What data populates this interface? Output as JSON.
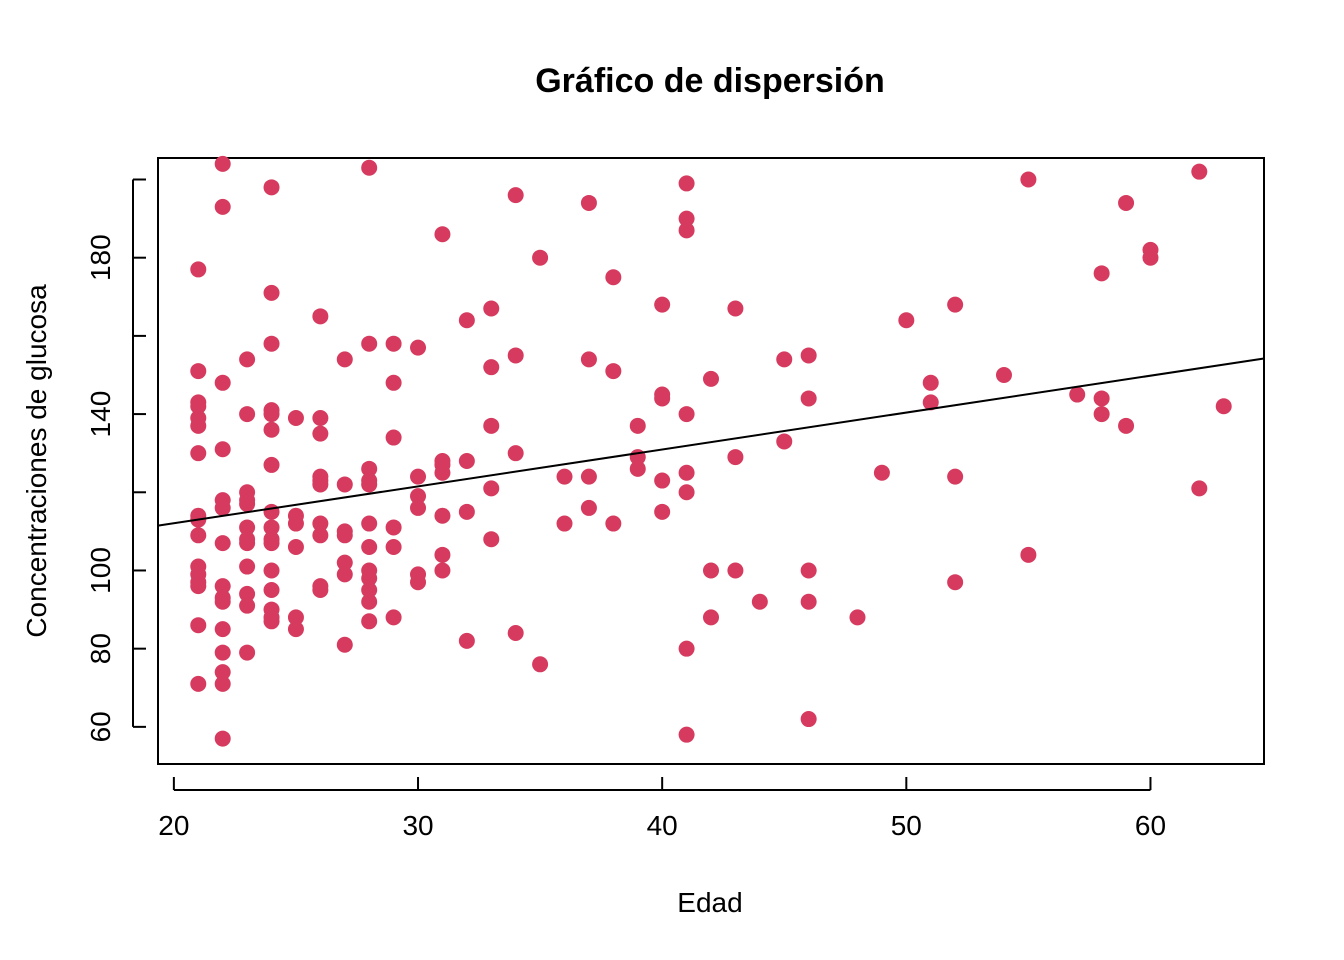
{
  "chart_data": {
    "type": "scatter",
    "title": "Gráfico de dispersión",
    "xlabel": "Edad",
    "ylabel": "Concentraciones de glucosa",
    "xlim": [
      19.35,
      64.65
    ],
    "ylim": [
      50.5,
      205.5
    ],
    "xticks": [
      20,
      30,
      40,
      50,
      60
    ],
    "yticks": [
      60,
      80,
      100,
      120,
      140,
      160,
      180,
      200
    ],
    "yticks_labeled": [
      60,
      80,
      100,
      140,
      180
    ],
    "point_color": "#d63a5e",
    "regression_line": {
      "slope": 0.9437,
      "intercept": 93.2
    },
    "grid": false,
    "legend": "none",
    "points": [
      [
        21,
        177
      ],
      [
        21,
        151
      ],
      [
        21,
        143
      ],
      [
        21,
        142
      ],
      [
        21,
        139
      ],
      [
        21,
        137
      ],
      [
        21,
        130
      ],
      [
        21,
        114
      ],
      [
        21,
        113
      ],
      [
        21,
        109
      ],
      [
        21,
        101
      ],
      [
        21,
        99
      ],
      [
        21,
        97
      ],
      [
        21,
        96
      ],
      [
        21,
        86
      ],
      [
        21,
        71
      ],
      [
        22,
        204
      ],
      [
        22,
        193
      ],
      [
        22,
        148
      ],
      [
        22,
        131
      ],
      [
        22,
        118
      ],
      [
        22,
        116
      ],
      [
        22,
        107
      ],
      [
        22,
        96
      ],
      [
        22,
        93
      ],
      [
        22,
        92
      ],
      [
        22,
        85
      ],
      [
        22,
        79
      ],
      [
        22,
        74
      ],
      [
        22,
        71
      ],
      [
        22,
        57
      ],
      [
        23,
        154
      ],
      [
        23,
        140
      ],
      [
        23,
        120
      ],
      [
        23,
        118
      ],
      [
        23,
        117
      ],
      [
        23,
        111
      ],
      [
        23,
        108
      ],
      [
        23,
        107
      ],
      [
        23,
        101
      ],
      [
        23,
        94
      ],
      [
        23,
        91
      ],
      [
        23,
        79
      ],
      [
        24,
        198
      ],
      [
        24,
        171
      ],
      [
        24,
        158
      ],
      [
        24,
        141
      ],
      [
        24,
        140
      ],
      [
        24,
        136
      ],
      [
        24,
        127
      ],
      [
        24,
        115
      ],
      [
        24,
        111
      ],
      [
        24,
        108
      ],
      [
        24,
        107
      ],
      [
        24,
        100
      ],
      [
        24,
        95
      ],
      [
        24,
        90
      ],
      [
        24,
        88
      ],
      [
        24,
        87
      ],
      [
        25,
        139
      ],
      [
        25,
        114
      ],
      [
        25,
        112
      ],
      [
        25,
        106
      ],
      [
        25,
        88
      ],
      [
        25,
        85
      ],
      [
        26,
        165
      ],
      [
        26,
        139
      ],
      [
        26,
        135
      ],
      [
        26,
        124
      ],
      [
        26,
        123
      ],
      [
        26,
        122
      ],
      [
        26,
        112
      ],
      [
        26,
        109
      ],
      [
        26,
        96
      ],
      [
        26,
        95
      ],
      [
        27,
        154
      ],
      [
        27,
        122
      ],
      [
        27,
        110
      ],
      [
        27,
        109
      ],
      [
        27,
        102
      ],
      [
        27,
        99
      ],
      [
        27,
        81
      ],
      [
        28,
        203
      ],
      [
        28,
        158
      ],
      [
        28,
        126
      ],
      [
        28,
        123
      ],
      [
        28,
        122
      ],
      [
        28,
        112
      ],
      [
        28,
        106
      ],
      [
        28,
        100
      ],
      [
        28,
        98
      ],
      [
        28,
        95
      ],
      [
        28,
        92
      ],
      [
        28,
        87
      ],
      [
        29,
        158
      ],
      [
        29,
        148
      ],
      [
        29,
        134
      ],
      [
        29,
        111
      ],
      [
        29,
        106
      ],
      [
        29,
        88
      ],
      [
        30,
        157
      ],
      [
        30,
        124
      ],
      [
        30,
        119
      ],
      [
        30,
        116
      ],
      [
        30,
        99
      ],
      [
        30,
        97
      ],
      [
        31,
        186
      ],
      [
        31,
        128
      ],
      [
        31,
        127
      ],
      [
        31,
        125
      ],
      [
        31,
        114
      ],
      [
        31,
        104
      ],
      [
        31,
        100
      ],
      [
        32,
        164
      ],
      [
        32,
        128
      ],
      [
        32,
        115
      ],
      [
        32,
        82
      ],
      [
        33,
        167
      ],
      [
        33,
        152
      ],
      [
        33,
        137
      ],
      [
        33,
        121
      ],
      [
        33,
        108
      ],
      [
        34,
        196
      ],
      [
        34,
        155
      ],
      [
        34,
        130
      ],
      [
        34,
        84
      ],
      [
        35,
        180
      ],
      [
        35,
        76
      ],
      [
        36,
        124
      ],
      [
        36,
        112
      ],
      [
        37,
        194
      ],
      [
        37,
        154
      ],
      [
        37,
        124
      ],
      [
        37,
        116
      ],
      [
        38,
        175
      ],
      [
        38,
        151
      ],
      [
        38,
        112
      ],
      [
        39,
        137
      ],
      [
        39,
        129
      ],
      [
        39,
        126
      ],
      [
        40,
        168
      ],
      [
        40,
        145
      ],
      [
        40,
        144
      ],
      [
        40,
        123
      ],
      [
        40,
        115
      ],
      [
        41,
        199
      ],
      [
        41,
        190
      ],
      [
        41,
        187
      ],
      [
        41,
        140
      ],
      [
        41,
        125
      ],
      [
        41,
        120
      ],
      [
        41,
        80
      ],
      [
        41,
        58
      ],
      [
        42,
        149
      ],
      [
        42,
        100
      ],
      [
        42,
        88
      ],
      [
        43,
        167
      ],
      [
        43,
        129
      ],
      [
        43,
        100
      ],
      [
        44,
        92
      ],
      [
        45,
        154
      ],
      [
        45,
        133
      ],
      [
        46,
        155
      ],
      [
        46,
        144
      ],
      [
        46,
        100
      ],
      [
        46,
        92
      ],
      [
        46,
        62
      ],
      [
        48,
        88
      ],
      [
        49,
        125
      ],
      [
        50,
        164
      ],
      [
        51,
        148
      ],
      [
        51,
        143
      ],
      [
        52,
        168
      ],
      [
        52,
        124
      ],
      [
        52,
        97
      ],
      [
        54,
        150
      ],
      [
        55,
        200
      ],
      [
        55,
        104
      ],
      [
        57,
        145
      ],
      [
        58,
        176
      ],
      [
        58,
        144
      ],
      [
        58,
        140
      ],
      [
        59,
        194
      ],
      [
        59,
        137
      ],
      [
        60,
        182
      ],
      [
        60,
        180
      ],
      [
        62,
        202
      ],
      [
        62,
        121
      ],
      [
        63,
        142
      ]
    ]
  }
}
